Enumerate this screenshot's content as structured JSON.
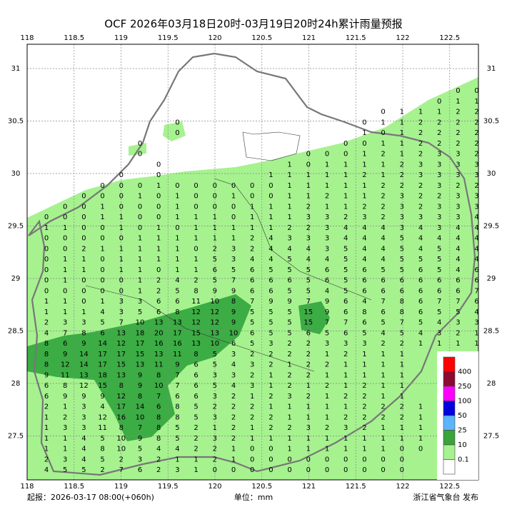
{
  "header": {
    "title": "OCF 2026年03月18日20时-03月19日20时24h累计雨量预报"
  },
  "axes": {
    "lon_ticks": [
      118,
      118.5,
      119,
      119.5,
      120,
      120.5,
      121,
      121.5,
      122,
      122.5
    ],
    "lat_ticks": [
      31,
      30.5,
      30,
      29.5,
      29,
      28.5,
      28,
      27.5
    ]
  },
  "grid": {
    "rows": [
      [
        null,
        null,
        null,
        null,
        null,
        null,
        null,
        null,
        null,
        null,
        null,
        null,
        null,
        null,
        null,
        null,
        null,
        null,
        null,
        null,
        null,
        null,
        0,
        0
      ],
      [
        null,
        null,
        null,
        null,
        null,
        null,
        null,
        null,
        null,
        null,
        null,
        null,
        null,
        null,
        null,
        null,
        null,
        null,
        null,
        null,
        null,
        0,
        1,
        1
      ],
      [
        null,
        null,
        null,
        null,
        null,
        null,
        null,
        null,
        null,
        null,
        null,
        null,
        null,
        null,
        null,
        null,
        null,
        null,
        0,
        1,
        1,
        1,
        2,
        2
      ],
      [
        null,
        null,
        null,
        null,
        null,
        null,
        null,
        0,
        null,
        null,
        null,
        null,
        null,
        null,
        null,
        null,
        null,
        0,
        1,
        1,
        2,
        2,
        2,
        2
      ],
      [
        null,
        null,
        null,
        null,
        null,
        null,
        null,
        0,
        null,
        null,
        null,
        null,
        null,
        null,
        null,
        null,
        null,
        1,
        0,
        1,
        2,
        2,
        2,
        2
      ],
      [
        null,
        null,
        null,
        null,
        null,
        0,
        null,
        null,
        null,
        null,
        null,
        null,
        null,
        null,
        null,
        null,
        0,
        0,
        1,
        1,
        2,
        2,
        2,
        2
      ],
      [
        null,
        null,
        null,
        null,
        null,
        0,
        null,
        null,
        null,
        null,
        null,
        null,
        null,
        null,
        0,
        0,
        0,
        1,
        2,
        1,
        2,
        3,
        3,
        2
      ],
      [
        null,
        null,
        null,
        null,
        null,
        null,
        0,
        null,
        null,
        null,
        null,
        null,
        null,
        1,
        0,
        1,
        1,
        1,
        1,
        2,
        3,
        3,
        3,
        3
      ],
      [
        null,
        null,
        null,
        null,
        0,
        null,
        0,
        null,
        null,
        null,
        null,
        null,
        1,
        1,
        1,
        1,
        1,
        2,
        1,
        2,
        3,
        3,
        3,
        3
      ],
      [
        null,
        null,
        null,
        0,
        0,
        0,
        1,
        0,
        0,
        0,
        0,
        0,
        0,
        1,
        1,
        1,
        1,
        1,
        2,
        2,
        2,
        3,
        2,
        2
      ],
      [
        null,
        null,
        0,
        0,
        0,
        1,
        0,
        1,
        0,
        0,
        1,
        0,
        0,
        1,
        1,
        2,
        1,
        1,
        2,
        3,
        2,
        2,
        3,
        3
      ],
      [
        null,
        0,
        0,
        1,
        0,
        0,
        0,
        1,
        0,
        0,
        0,
        1,
        1,
        1,
        2,
        1,
        1,
        2,
        2,
        3,
        2,
        3,
        3,
        3
      ],
      [
        0,
        0,
        0,
        1,
        1,
        0,
        0,
        1,
        1,
        1,
        0,
        1,
        1,
        1,
        3,
        3,
        2,
        3,
        2,
        3,
        3,
        3,
        3,
        4
      ],
      [
        1,
        1,
        0,
        0,
        1,
        0,
        1,
        0,
        1,
        1,
        1,
        1,
        1,
        2,
        2,
        3,
        4,
        4,
        4,
        3,
        4,
        3,
        4,
        4
      ],
      [
        0,
        0,
        0,
        0,
        0,
        1,
        1,
        1,
        1,
        1,
        1,
        2,
        4,
        3,
        3,
        3,
        4,
        4,
        4,
        5,
        4,
        4,
        4,
        4
      ],
      [
        0,
        0,
        2,
        1,
        1,
        1,
        1,
        1,
        0,
        2,
        3,
        2,
        4,
        4,
        4,
        3,
        5,
        4,
        4,
        5,
        4,
        5,
        4,
        4
      ],
      [
        0,
        1,
        1,
        0,
        1,
        1,
        1,
        1,
        1,
        5,
        3,
        4,
        4,
        5,
        4,
        4,
        5,
        4,
        4,
        5,
        5,
        5,
        4,
        4
      ],
      [
        0,
        1,
        1,
        0,
        1,
        1,
        0,
        1,
        1,
        6,
        5,
        6,
        5,
        5,
        5,
        6,
        5,
        6,
        5,
        5,
        6,
        5,
        4,
        6
      ],
      [
        0,
        1,
        0,
        0,
        0,
        1,
        2,
        4,
        2,
        5,
        7,
        6,
        6,
        6,
        5,
        6,
        5,
        6,
        6,
        6,
        6,
        6,
        6,
        6
      ],
      [
        0,
        0,
        0,
        0,
        0,
        1,
        2,
        5,
        8,
        9,
        9,
        6,
        6,
        5,
        5,
        4,
        5,
        6,
        6,
        6,
        6,
        6,
        6,
        7
      ],
      [
        1,
        1,
        0,
        1,
        3,
        3,
        6,
        6,
        11,
        10,
        8,
        7,
        9,
        9,
        7,
        9,
        6,
        4,
        7,
        8,
        6,
        7,
        7,
        6
      ],
      [
        1,
        1,
        1,
        4,
        3,
        5,
        6,
        8,
        12,
        12,
        9,
        5,
        5,
        5,
        15,
        9,
        6,
        8,
        6,
        8,
        6,
        5,
        5,
        4
      ],
      [
        2,
        3,
        3,
        5,
        7,
        10,
        13,
        13,
        12,
        12,
        9,
        5,
        5,
        5,
        15,
        7,
        7,
        6,
        5,
        7,
        5,
        4,
        3,
        3
      ],
      [
        4,
        7,
        8,
        6,
        13,
        18,
        20,
        17,
        15,
        13,
        10,
        6,
        5,
        5,
        6,
        5,
        6,
        5,
        4,
        5,
        4,
        3,
        2,
        1
      ],
      [
        8,
        6,
        9,
        14,
        12,
        17,
        16,
        16,
        13,
        10,
        6,
        5,
        3,
        2,
        2,
        3,
        3,
        3,
        2,
        2,
        1,
        1,
        1,
        1
      ],
      [
        8,
        9,
        14,
        17,
        17,
        15,
        13,
        11,
        8,
        5,
        3,
        2,
        2,
        2,
        2,
        1,
        2,
        1,
        1,
        1
      ],
      [
        8,
        12,
        14,
        17,
        15,
        13,
        11,
        9,
        6,
        5,
        4,
        3,
        2,
        1,
        2,
        2,
        1,
        1,
        1,
        1
      ],
      [
        9,
        11,
        13,
        18,
        13,
        9,
        8,
        7,
        6,
        3,
        3,
        2,
        1,
        2,
        2,
        1,
        1,
        1,
        1,
        1
      ],
      [
        6,
        8,
        12,
        15,
        8,
        9,
        10,
        7,
        6,
        5,
        4,
        3,
        1,
        2,
        1,
        2,
        1,
        2,
        1,
        1
      ],
      [
        6,
        9,
        9,
        9,
        12,
        8,
        7,
        6,
        6,
        3,
        2,
        1,
        2,
        3,
        2,
        1,
        2,
        2,
        1,
        1
      ],
      [
        2,
        1,
        3,
        4,
        17,
        14,
        6,
        8,
        5,
        2,
        2,
        2,
        1,
        1,
        1,
        1,
        1,
        2,
        2,
        2,
        1,
        1
      ],
      [
        1,
        2,
        3,
        12,
        16,
        10,
        8,
        8,
        5,
        3,
        2,
        2,
        2,
        1,
        1,
        1,
        2,
        2,
        2,
        2,
        1,
        1
      ],
      [
        1,
        3,
        3,
        11,
        8,
        7,
        8,
        5,
        2,
        1,
        2,
        1,
        2,
        2,
        3,
        2,
        3,
        2,
        1,
        1,
        1
      ],
      [
        1,
        1,
        4,
        5,
        10,
        9,
        8,
        5,
        2,
        3,
        2,
        1,
        1,
        1,
        1,
        1,
        1,
        1,
        1,
        1,
        1
      ],
      [
        1,
        1,
        4,
        8,
        10,
        5,
        4,
        4,
        2,
        2,
        1,
        0,
        0,
        1,
        1,
        1,
        1,
        1,
        1,
        0,
        0
      ],
      [
        2,
        3,
        4,
        5,
        2,
        3,
        2,
        1,
        1,
        2,
        1,
        0,
        0,
        0,
        0,
        0,
        0,
        0,
        0,
        0
      ],
      [
        4,
        5,
        5,
        2,
        7,
        6,
        2,
        3,
        1,
        0,
        0,
        0,
        0,
        0,
        0,
        0,
        0,
        0,
        0,
        0
      ]
    ]
  },
  "legend": {
    "colors": [
      "#ff0000",
      "#8c0a30",
      "#ff00ff",
      "#0000dd",
      "#5ab4ff",
      "#3aa33a",
      "#a6f28f",
      "#ffffff"
    ],
    "levels": [
      400,
      250,
      100,
      50,
      25,
      10,
      0.1
    ]
  },
  "footer": {
    "issue": "起报：2026-03-17 08:00(+060h)",
    "unit": "单位：mm",
    "publisher": "浙江省气象台 发布"
  }
}
